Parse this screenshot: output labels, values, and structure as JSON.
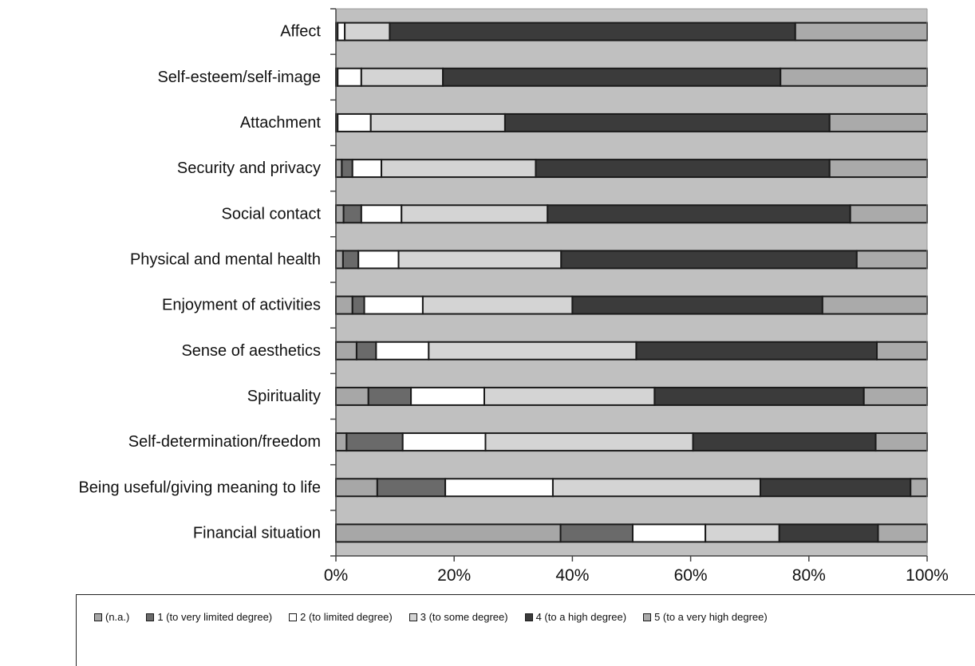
{
  "chart_data": {
    "type": "bar",
    "orientation": "horizontal",
    "stacked": "percent",
    "categories": [
      "Affect",
      "Self-esteem/self-image",
      "Attachment",
      "Security and privacy",
      "Social contact",
      "Physical and mental health",
      "Enjoyment of activities",
      "Sense of aesthetics",
      "Spirituality",
      "Self-determination/freedom",
      "Being useful/giving meaning to life",
      "Financial situation"
    ],
    "series": [
      {
        "name": "(n.a.)",
        "color": "#a7a7a7",
        "values": [
          0.3,
          0.3,
          0.3,
          1.0,
          1.3,
          1.2,
          2.8,
          3.5,
          5.5,
          1.8,
          7.0,
          38.0
        ]
      },
      {
        "name": "1 (to very limited degree)",
        "color": "#6a6a6a",
        "values": [
          0,
          0,
          0,
          1.8,
          3.0,
          2.6,
          2.0,
          3.3,
          7.2,
          9.5,
          11.5,
          12.2
        ]
      },
      {
        "name": "2 (to limited degree)",
        "color": "#ffffff",
        "values": [
          1.2,
          4.0,
          5.6,
          4.9,
          6.8,
          6.8,
          9.9,
          8.9,
          12.4,
          14.0,
          18.2,
          12.3
        ]
      },
      {
        "name": "3 (to some degree)",
        "color": "#d4d4d4",
        "values": [
          7.6,
          13.8,
          22.7,
          26.1,
          24.7,
          27.5,
          25.3,
          35.1,
          28.8,
          35.1,
          35.1,
          12.5
        ]
      },
      {
        "name": "4 (to a high degree)",
        "color": "#3b3b3b",
        "values": [
          68.6,
          57.1,
          54.9,
          49.7,
          51.2,
          50.0,
          42.3,
          40.7,
          35.4,
          30.9,
          25.4,
          16.7
        ]
      },
      {
        "name": "5 (to a very high degree)",
        "color": "#aaaaaa",
        "values": [
          22.3,
          24.8,
          16.5,
          16.5,
          13.0,
          11.9,
          17.7,
          8.5,
          10.7,
          8.7,
          2.8,
          8.3
        ]
      }
    ],
    "xlim": [
      0,
      100
    ],
    "xticks": [
      "0%",
      "20%",
      "40%",
      "60%",
      "80%",
      "100%"
    ],
    "title": "",
    "xlabel": "",
    "ylabel": "",
    "grid": false,
    "legend": "bottom",
    "plot_background": "#c0c0c0"
  }
}
